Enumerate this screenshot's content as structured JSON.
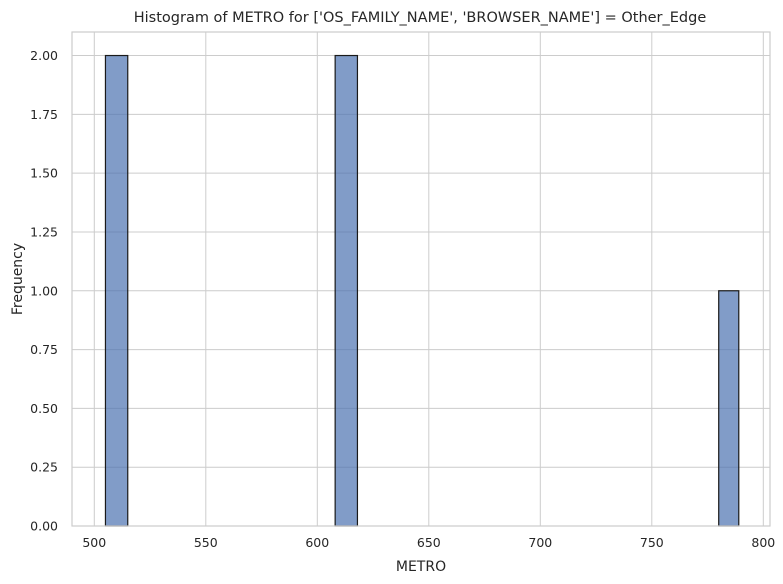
{
  "chart_data": {
    "type": "histogram",
    "title": "Histogram of METRO for ['OS_FAMILY_NAME', 'BROWSER_NAME'] = Other_Edge",
    "xlabel": "METRO",
    "ylabel": "Frequency",
    "bins": [
      {
        "start": 505,
        "end": 515,
        "count": 2
      },
      {
        "start": 608,
        "end": 618,
        "count": 2
      },
      {
        "start": 780,
        "end": 789,
        "count": 1
      }
    ],
    "xlim": [
      490,
      803
    ],
    "ylim": [
      0,
      2.1
    ],
    "xticks": [
      500,
      550,
      600,
      650,
      700,
      750,
      800
    ],
    "yticks": [
      "0.00",
      "0.25",
      "0.50",
      "0.75",
      "1.00",
      "1.25",
      "1.50",
      "1.75",
      "2.00"
    ],
    "grid": true,
    "colors": {
      "bar": "#4c72b0",
      "edge": "#1a1a1a",
      "grid": "#cccccc"
    }
  }
}
